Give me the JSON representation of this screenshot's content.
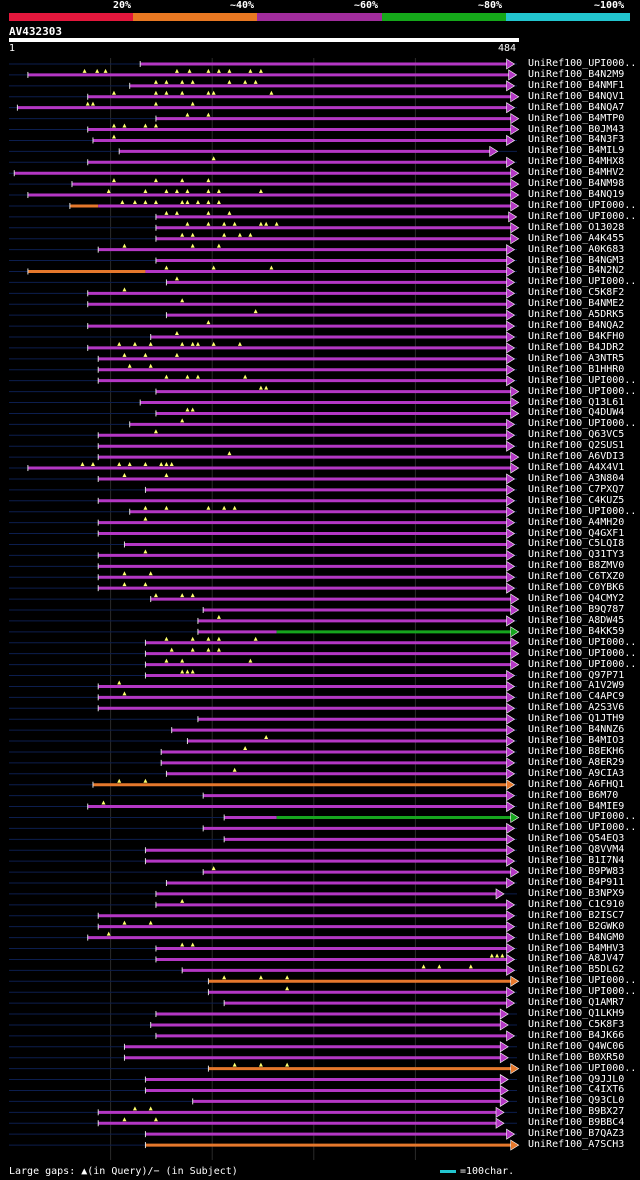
{
  "query": {
    "id": "AV432303",
    "start": "1",
    "end": "484",
    "length": 484
  },
  "legend": {
    "labels": [
      "20%",
      "~40%",
      "~60%",
      "~80%",
      "~100%"
    ],
    "colors": [
      "#e3173c",
      "#e87822",
      "#a12c9c",
      "#15a81a",
      "#22c5cf"
    ]
  },
  "colors": {
    "hit": "#b437c4",
    "hit_orange": "#e6782c",
    "hit_green": "#16a51e",
    "background_line": "#0c1e4e",
    "gap_marker": "#ffff6e"
  },
  "footer": {
    "gap_text": "Large gaps: ▲(in Query)/− (in Subject)",
    "scale_text": "=100char."
  },
  "hits": [
    {
      "label": "UniRef100_UPI000..",
      "qs": 125,
      "qe": 474,
      "color": "m",
      "arrow": 1,
      "gaps": []
    },
    {
      "label": "UniRef100_B4N2M9",
      "qs": 18,
      "qe": 476,
      "color": "m",
      "arrow": 1,
      "gaps": [
        72,
        84,
        92,
        160,
        172,
        190,
        200,
        210,
        230,
        240
      ]
    },
    {
      "label": "UniRef100_B4NMF1",
      "qs": 115,
      "qe": 474,
      "color": "m",
      "arrow": 1,
      "gaps": [
        140,
        150,
        165,
        175,
        210,
        225,
        235
      ]
    },
    {
      "label": "UniRef100_B4NQV1",
      "qs": 75,
      "qe": 478,
      "color": "m",
      "arrow": 1,
      "gaps": [
        100,
        140,
        150,
        165,
        190,
        195,
        250
      ]
    },
    {
      "label": "UniRef100_B4NQA7",
      "qs": 8,
      "qe": 474,
      "color": "m",
      "arrow": 1,
      "gaps": [
        75,
        80,
        140,
        175
      ]
    },
    {
      "label": "UniRef100_B4MTP0",
      "qs": 140,
      "qe": 478,
      "color": "m",
      "arrow": 1,
      "gaps": [
        170,
        190
      ]
    },
    {
      "label": "UniRef100_B0JM43",
      "qs": 75,
      "qe": 478,
      "color": "m",
      "arrow": 1,
      "gaps": [
        100,
        110,
        130,
        140
      ]
    },
    {
      "label": "UniRef100_B4N3F3",
      "qs": 80,
      "qe": 474,
      "color": "m",
      "arrow": 1,
      "gaps": [
        100
      ]
    },
    {
      "label": "UniRef100_B4MIL9",
      "qs": 105,
      "qe": 458,
      "color": "m",
      "arrow": 1,
      "gaps": []
    },
    {
      "label": "UniRef100_B4MHX8",
      "qs": 75,
      "qe": 474,
      "color": "m",
      "arrow": 1,
      "gaps": [
        195
      ]
    },
    {
      "label": "UniRef100_B4MHV2",
      "qs": 5,
      "qe": 478,
      "color": "m",
      "arrow": 1,
      "gaps": []
    },
    {
      "label": "UniRef100_B4NM98",
      "qs": 60,
      "qe": 478,
      "color": "m",
      "arrow": 1,
      "gaps": [
        100,
        140,
        165,
        190
      ]
    },
    {
      "label": "UniRef100_B4NQ19",
      "qs": 18,
      "qe": 478,
      "color": "m",
      "arrow": 1,
      "gaps": [
        95,
        130,
        150,
        160,
        170,
        190,
        200,
        240
      ]
    },
    {
      "label": "UniRef100_UPI000..",
      "qs": 58,
      "qe": 478,
      "color": "mo",
      "arrow": 1,
      "gaps": [
        108,
        120,
        130,
        140,
        165,
        170,
        180,
        190,
        200
      ]
    },
    {
      "label": "UniRef100_UPI000..",
      "qs": 140,
      "qe": 476,
      "color": "m",
      "arrow": 1,
      "gaps": [
        150,
        160,
        190,
        210
      ]
    },
    {
      "label": "UniRef100_O13028",
      "qs": 140,
      "qe": 478,
      "color": "m",
      "arrow": 1,
      "gaps": [
        170,
        190,
        205,
        215,
        240,
        245,
        255
      ]
    },
    {
      "label": "UniRef100_A4K455",
      "qs": 140,
      "qe": 478,
      "color": "m",
      "arrow": 1,
      "gaps": [
        165,
        175,
        205,
        220,
        230
      ]
    },
    {
      "label": "UniRef100_A0K683",
      "qs": 85,
      "qe": 474,
      "color": "m",
      "arrow": 1,
      "gaps": [
        110,
        175,
        200
      ]
    },
    {
      "label": "UniRef100_B4NGM3",
      "qs": 140,
      "qe": 474,
      "color": "m",
      "arrow": 1,
      "gaps": []
    },
    {
      "label": "UniRef100_B4N2N2",
      "qs": 18,
      "qe": 474,
      "color": "om",
      "arrow": 1,
      "gaps": [
        150,
        195,
        250
      ]
    },
    {
      "label": "UniRef100_UPI000..",
      "qs": 150,
      "qe": 474,
      "color": "m",
      "arrow": 1,
      "gaps": [
        160
      ]
    },
    {
      "label": "UniRef100_C5K8F2",
      "qs": 75,
      "qe": 474,
      "color": "m",
      "arrow": 1,
      "gaps": [
        110
      ]
    },
    {
      "label": "UniRef100_B4NME2",
      "qs": 75,
      "qe": 474,
      "color": "m",
      "arrow": 1,
      "gaps": [
        165
      ]
    },
    {
      "label": "UniRef100_A5DRK5",
      "qs": 150,
      "qe": 474,
      "color": "m",
      "arrow": 1,
      "gaps": [
        235
      ]
    },
    {
      "label": "UniRef100_B4NQA2",
      "qs": 75,
      "qe": 474,
      "color": "m",
      "arrow": 1,
      "gaps": [
        190
      ]
    },
    {
      "label": "UniRef100_B4KFH0",
      "qs": 135,
      "qe": 474,
      "color": "m",
      "arrow": 1,
      "gaps": [
        160
      ]
    },
    {
      "label": "UniRef100_B4JDR2",
      "qs": 75,
      "qe": 474,
      "color": "m",
      "arrow": 1,
      "gaps": [
        105,
        120,
        135,
        165,
        175,
        180,
        195,
        220
      ]
    },
    {
      "label": "UniRef100_A3NTR5",
      "qs": 85,
      "qe": 474,
      "color": "m",
      "arrow": 1,
      "gaps": [
        110,
        130,
        160
      ]
    },
    {
      "label": "UniRef100_B1HHR0",
      "qs": 85,
      "qe": 474,
      "color": "m",
      "arrow": 1,
      "gaps": [
        115,
        135
      ]
    },
    {
      "label": "UniRef100_UPI000..",
      "qs": 85,
      "qe": 474,
      "color": "m",
      "arrow": 1,
      "gaps": [
        150,
        170,
        180,
        225
      ]
    },
    {
      "label": "UniRef100_UPI000..",
      "qs": 140,
      "qe": 478,
      "color": "m",
      "arrow": 1,
      "gaps": [
        240,
        245
      ]
    },
    {
      "label": "UniRef100_Q13L61",
      "qs": 125,
      "qe": 478,
      "color": "m",
      "arrow": 1,
      "gaps": []
    },
    {
      "label": "UniRef100_Q4DUW4",
      "qs": 140,
      "qe": 478,
      "color": "m",
      "arrow": 1,
      "gaps": [
        170,
        175
      ]
    },
    {
      "label": "UniRef100_UPI000..",
      "qs": 115,
      "qe": 474,
      "color": "m",
      "arrow": 1,
      "gaps": [
        165
      ]
    },
    {
      "label": "UniRef100_Q63VC5",
      "qs": 85,
      "qe": 474,
      "color": "m",
      "arrow": 1,
      "gaps": [
        140
      ]
    },
    {
      "label": "UniRef100_Q2SUS1",
      "qs": 85,
      "qe": 474,
      "color": "m",
      "arrow": 1,
      "gaps": []
    },
    {
      "label": "UniRef100_A6VDI3",
      "qs": 85,
      "qe": 478,
      "color": "m",
      "arrow": 1,
      "gaps": [
        210
      ]
    },
    {
      "label": "UniRef100_A4X4V1",
      "qs": 18,
      "qe": 478,
      "color": "m",
      "arrow": 1,
      "gaps": [
        70,
        80,
        105,
        115,
        130,
        145,
        150,
        155
      ]
    },
    {
      "label": "UniRef100_A3N804",
      "qs": 85,
      "qe": 474,
      "color": "m",
      "arrow": 1,
      "gaps": [
        110,
        150
      ]
    },
    {
      "label": "UniRef100_C7PXQ7",
      "qs": 130,
      "qe": 474,
      "color": "m",
      "arrow": 1,
      "gaps": []
    },
    {
      "label": "UniRef100_C4KUZ5",
      "qs": 85,
      "qe": 474,
      "color": "m",
      "arrow": 1,
      "gaps": []
    },
    {
      "label": "UniRef100_UPI000..",
      "qs": 115,
      "qe": 474,
      "color": "m",
      "arrow": 1,
      "gaps": [
        130,
        150,
        190,
        205,
        215
      ]
    },
    {
      "label": "UniRef100_A4MH20",
      "qs": 85,
      "qe": 474,
      "color": "m",
      "arrow": 1,
      "gaps": [
        130
      ]
    },
    {
      "label": "UniRef100_Q4GXF1",
      "qs": 85,
      "qe": 474,
      "color": "m",
      "arrow": 1,
      "gaps": []
    },
    {
      "label": "UniRef100_C5LQI8",
      "qs": 110,
      "qe": 474,
      "color": "m",
      "arrow": 1,
      "gaps": []
    },
    {
      "label": "UniRef100_Q31TY3",
      "qs": 85,
      "qe": 474,
      "color": "m",
      "arrow": 1,
      "gaps": [
        130
      ]
    },
    {
      "label": "UniRef100_B8ZMV0",
      "qs": 85,
      "qe": 474,
      "color": "m",
      "arrow": 1,
      "gaps": []
    },
    {
      "label": "UniRef100_C6TXZ0",
      "qs": 85,
      "qe": 474,
      "color": "m",
      "arrow": 1,
      "gaps": [
        110,
        135
      ]
    },
    {
      "label": "UniRef100_C0YBK6",
      "qs": 85,
      "qe": 474,
      "color": "m",
      "arrow": 1,
      "gaps": [
        110,
        130
      ]
    },
    {
      "label": "UniRef100_Q4CMY2",
      "qs": 135,
      "qe": 478,
      "color": "m",
      "arrow": 1,
      "gaps": [
        140,
        165,
        175
      ]
    },
    {
      "label": "UniRef100_B9Q787",
      "qs": 185,
      "qe": 478,
      "color": "m",
      "arrow": 1,
      "gaps": []
    },
    {
      "label": "UniRef100_A8DW45",
      "qs": 180,
      "qe": 474,
      "color": "m",
      "arrow": 1,
      "gaps": [
        200
      ]
    },
    {
      "label": "UniRef100_B4KK59",
      "qs": 180,
      "qe": 478,
      "color": "mg",
      "arrow": 1,
      "gaps": []
    },
    {
      "label": "UniRef100_UPI000..",
      "qs": 130,
      "qe": 478,
      "color": "m",
      "arrow": 1,
      "gaps": [
        150,
        175,
        190,
        200,
        235
      ]
    },
    {
      "label": "UniRef100_UPI000..",
      "qs": 130,
      "qe": 478,
      "color": "m",
      "arrow": 1,
      "gaps": [
        155,
        175,
        190,
        200
      ]
    },
    {
      "label": "UniRef100_UPI000..",
      "qs": 130,
      "qe": 478,
      "color": "m",
      "arrow": 1,
      "gaps": [
        150,
        165,
        230
      ]
    },
    {
      "label": "UniRef100_Q97P71",
      "qs": 130,
      "qe": 474,
      "color": "m",
      "arrow": 1,
      "gaps": [
        165,
        170,
        175
      ]
    },
    {
      "label": "UniRef100_A1V2W9",
      "qs": 85,
      "qe": 474,
      "color": "m",
      "arrow": 1,
      "gaps": [
        105
      ]
    },
    {
      "label": "UniRef100_C4APC9",
      "qs": 85,
      "qe": 474,
      "color": "m",
      "arrow": 1,
      "gaps": [
        110
      ]
    },
    {
      "label": "UniRef100_A2S3V6",
      "qs": 85,
      "qe": 474,
      "color": "m",
      "arrow": 1,
      "gaps": []
    },
    {
      "label": "UniRef100_Q1JTH9",
      "qs": 180,
      "qe": 474,
      "color": "m",
      "arrow": 1,
      "gaps": []
    },
    {
      "label": "UniRef100_B4NNZ6",
      "qs": 155,
      "qe": 474,
      "color": "m",
      "arrow": 1,
      "gaps": []
    },
    {
      "label": "UniRef100_B4MIO3",
      "qs": 170,
      "qe": 474,
      "color": "m",
      "arrow": 1,
      "gaps": [
        245
      ]
    },
    {
      "label": "UniRef100_B8EKH6",
      "qs": 145,
      "qe": 474,
      "color": "m",
      "arrow": 1,
      "gaps": [
        225
      ]
    },
    {
      "label": "UniRef100_A8ER29",
      "qs": 145,
      "qe": 474,
      "color": "m",
      "arrow": 1,
      "gaps": []
    },
    {
      "label": "UniRef100_A9CIA3",
      "qs": 150,
      "qe": 474,
      "color": "m",
      "arrow": 1,
      "gaps": [
        215
      ]
    },
    {
      "label": "UniRef100_A6FHQ1",
      "qs": 80,
      "qe": 474,
      "color": "mo",
      "arrow": 1,
      "gaps": [
        105,
        130
      ]
    },
    {
      "label": "UniRef100_B6M70",
      "qs": 185,
      "qe": 474,
      "color": "m",
      "arrow": 1,
      "gaps": []
    },
    {
      "label": "UniRef100_B4MIE9",
      "qs": 75,
      "qe": 474,
      "color": "m",
      "arrow": 1,
      "gaps": [
        90
      ]
    },
    {
      "label": "UniRef100_UPI000..",
      "qs": 205,
      "qe": 478,
      "color": "mg",
      "arrow": 1,
      "gaps": []
    },
    {
      "label": "UniRef100_UPI000..",
      "qs": 185,
      "qe": 474,
      "color": "m",
      "arrow": 1,
      "gaps": []
    },
    {
      "label": "UniRef100_Q54EQ3",
      "qs": 205,
      "qe": 474,
      "color": "m",
      "arrow": 1,
      "gaps": []
    },
    {
      "label": "UniRef100_Q8VVM4",
      "qs": 130,
      "qe": 474,
      "color": "m",
      "arrow": 1,
      "gaps": []
    },
    {
      "label": "UniRef100_B1I7N4",
      "qs": 130,
      "qe": 474,
      "color": "m",
      "arrow": 1,
      "gaps": []
    },
    {
      "label": "UniRef100_B9PW83",
      "qs": 185,
      "qe": 478,
      "color": "m",
      "arrow": 1,
      "gaps": [
        195
      ]
    },
    {
      "label": "UniRef100_B4P911",
      "qs": 150,
      "qe": 474,
      "color": "m",
      "arrow": 1,
      "gaps": []
    },
    {
      "label": "UniRef100_B3NPX9",
      "qs": 140,
      "qe": 464,
      "color": "m",
      "arrow": 1,
      "gaps": []
    },
    {
      "label": "UniRef100_C1C910",
      "qs": 140,
      "qe": 474,
      "color": "m",
      "arrow": 1,
      "gaps": [
        165
      ]
    },
    {
      "label": "UniRef100_B2ISC7",
      "qs": 85,
      "qe": 474,
      "color": "m",
      "arrow": 1,
      "gaps": []
    },
    {
      "label": "UniRef100_B2GWK0",
      "qs": 85,
      "qe": 474,
      "color": "m",
      "arrow": 1,
      "gaps": [
        110,
        135
      ]
    },
    {
      "label": "UniRef100_B4NGM0",
      "qs": 75,
      "qe": 474,
      "color": "m",
      "arrow": 1,
      "gaps": [
        95
      ]
    },
    {
      "label": "UniRef100_B4MHV3",
      "qs": 140,
      "qe": 474,
      "color": "m",
      "arrow": 1,
      "gaps": [
        165,
        175
      ]
    },
    {
      "label": "UniRef100_A8JV47",
      "qs": 140,
      "qe": 474,
      "color": "m",
      "arrow": 1,
      "gaps": [
        460,
        465,
        470
      ]
    },
    {
      "label": "UniRef100_B5DLG2",
      "qs": 165,
      "qe": 474,
      "color": "m",
      "arrow": 1,
      "gaps": [
        395,
        410,
        440
      ]
    },
    {
      "label": "UniRef100_UPI000..",
      "qs": 190,
      "qe": 478,
      "color": "o",
      "arrow": 1,
      "gaps": [
        205,
        240,
        265
      ]
    },
    {
      "label": "UniRef100_UPI000..",
      "qs": 190,
      "qe": 474,
      "color": "m",
      "arrow": 1,
      "gaps": [
        265
      ]
    },
    {
      "label": "UniRef100_Q1AMR7",
      "qs": 205,
      "qe": 474,
      "color": "m",
      "arrow": 1,
      "gaps": []
    },
    {
      "label": "UniRef100_Q1LKH9",
      "qs": 140,
      "qe": 468,
      "color": "m",
      "arrow": 1,
      "gaps": []
    },
    {
      "label": "UniRef100_C5K8F3",
      "qs": 135,
      "qe": 468,
      "color": "m",
      "arrow": 1,
      "gaps": []
    },
    {
      "label": "UniRef100_B4JK66",
      "qs": 140,
      "qe": 474,
      "color": "m",
      "arrow": 1,
      "gaps": []
    },
    {
      "label": "UniRef100_Q4WC06",
      "qs": 110,
      "qe": 468,
      "color": "m",
      "arrow": 1,
      "gaps": []
    },
    {
      "label": "UniRef100_B0XR50",
      "qs": 110,
      "qe": 468,
      "color": "m",
      "arrow": 1,
      "gaps": []
    },
    {
      "label": "UniRef100_UPI000..",
      "qs": 190,
      "qe": 478,
      "color": "o",
      "arrow": 1,
      "gaps": [
        215,
        240,
        265
      ]
    },
    {
      "label": "UniRef100_Q9JJL0",
      "qs": 130,
      "qe": 468,
      "color": "m",
      "arrow": 1,
      "gaps": []
    },
    {
      "label": "UniRef100_C4IXT6",
      "qs": 130,
      "qe": 468,
      "color": "m",
      "arrow": 1,
      "gaps": []
    },
    {
      "label": "UniRef100_Q93CL0",
      "qs": 175,
      "qe": 468,
      "color": "m",
      "arrow": 1,
      "gaps": []
    },
    {
      "label": "UniRef100_B9BX27",
      "qs": 85,
      "qe": 464,
      "color": "m",
      "arrow": 1,
      "gaps": [
        120,
        135
      ]
    },
    {
      "label": "UniRef100_B9BBC4",
      "qs": 85,
      "qe": 464,
      "color": "m",
      "arrow": 1,
      "gaps": [
        110,
        140
      ]
    },
    {
      "label": "UniRef100_B7QAZ3",
      "qs": 130,
      "qe": 474,
      "color": "m",
      "arrow": 1,
      "gaps": []
    },
    {
      "label": "UniRef100_A7SCH3",
      "qs": 130,
      "qe": 478,
      "color": "o",
      "arrow": 1,
      "gaps": []
    }
  ]
}
